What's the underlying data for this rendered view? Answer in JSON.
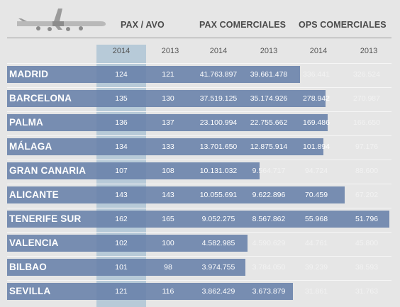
{
  "header": {
    "group_pax_avo": "PAX / AVO",
    "group_pax_comerciales": "PAX COMERCIALES",
    "group_ops_comerciales": "OPS COMERCIALES",
    "years": [
      "2014",
      "2013",
      "2014",
      "2013",
      "2014",
      "2013"
    ]
  },
  "plane_icon": "airplane-icon",
  "colors": {
    "bar": "#6680a9",
    "highlight_column": "#b7cad8",
    "background": "#e6e6e6",
    "header_text": "#4b4b4b"
  },
  "rows": [
    {
      "city": "MADRID",
      "pax_avo_2014": "124",
      "pax_avo_2013": "121",
      "pax_com_2014": "41.763.897",
      "pax_com_2013": "39.661.478",
      "ops_com_2014": "336.441",
      "ops_com_2013": "326.524"
    },
    {
      "city": "BARCELONA",
      "pax_avo_2014": "135",
      "pax_avo_2013": "130",
      "pax_com_2014": "37.519.125",
      "pax_com_2013": "35.174.926",
      "ops_com_2014": "278.942",
      "ops_com_2013": "270.987"
    },
    {
      "city": "PALMA",
      "pax_avo_2014": "136",
      "pax_avo_2013": "137",
      "pax_com_2014": "23.100.994",
      "pax_com_2013": "22.755.662",
      "ops_com_2014": "169.486",
      "ops_com_2013": "166.650"
    },
    {
      "city": "MÁLAGA",
      "pax_avo_2014": "134",
      "pax_avo_2013": "133",
      "pax_com_2014": "13.701.650",
      "pax_com_2013": "12.875.914",
      "ops_com_2014": "101.894",
      "ops_com_2013": "97.176"
    },
    {
      "city": "GRAN CANARIA",
      "pax_avo_2014": "107",
      "pax_avo_2013": "108",
      "pax_com_2014": "10.131.032",
      "pax_com_2013": "9.564.717",
      "ops_com_2014": "94.724",
      "ops_com_2013": "88.600"
    },
    {
      "city": "ALICANTE",
      "pax_avo_2014": "143",
      "pax_avo_2013": "143",
      "pax_com_2014": "10.055.691",
      "pax_com_2013": "9.622.896",
      "ops_com_2014": "70.459",
      "ops_com_2013": "67.202"
    },
    {
      "city": "TENERIFE SUR",
      "pax_avo_2014": "162",
      "pax_avo_2013": "165",
      "pax_com_2014": "9.052.275",
      "pax_com_2013": "8.567.862",
      "ops_com_2014": "55.968",
      "ops_com_2013": "51.796"
    },
    {
      "city": "VALENCIA",
      "pax_avo_2014": "102",
      "pax_avo_2013": "100",
      "pax_com_2014": "4.582.985",
      "pax_com_2013": "4.590.629",
      "ops_com_2014": "44.761",
      "ops_com_2013": "45.800"
    },
    {
      "city": "BILBAO",
      "pax_avo_2014": "101",
      "pax_avo_2013": "98",
      "pax_com_2014": "3.974.755",
      "pax_com_2013": "3.784.050",
      "ops_com_2014": "39.239",
      "ops_com_2013": "38.593"
    },
    {
      "city": "SEVILLA",
      "pax_avo_2014": "121",
      "pax_avo_2013": "116",
      "pax_com_2014": "3.862.429",
      "pax_com_2013": "3.673.879",
      "ops_com_2014": "31.861",
      "ops_com_2013": "31.763"
    }
  ],
  "chart_data": {
    "type": "bar",
    "orientation": "horizontal",
    "categories": [
      "MADRID",
      "BARCELONA",
      "PALMA",
      "MÁLAGA",
      "GRAN CANARIA",
      "ALICANTE",
      "TENERIFE SUR",
      "VALENCIA",
      "BILBAO",
      "SEVILLA"
    ],
    "values": [
      124,
      135,
      136,
      134,
      107,
      143,
      162,
      102,
      101,
      121
    ],
    "xlim": [
      0,
      162
    ],
    "table_columns": [
      "PAX / AVO 2014",
      "PAX / AVO 2013",
      "PAX COMERCIALES 2014",
      "PAX COMERCIALES 2013",
      "OPS COMERCIALES 2014",
      "OPS COMERCIALES 2013"
    ],
    "series": [
      {
        "name": "PAX / AVO 2014",
        "values": [
          124,
          135,
          136,
          134,
          107,
          143,
          162,
          102,
          101,
          121
        ]
      },
      {
        "name": "PAX / AVO 2013",
        "values": [
          121,
          130,
          137,
          133,
          108,
          143,
          165,
          100,
          98,
          116
        ]
      },
      {
        "name": "PAX COMERCIALES 2014",
        "values": [
          41763897,
          37519125,
          23100994,
          13701650,
          10131032,
          10055691,
          9052275,
          4582985,
          3974755,
          3862429
        ]
      },
      {
        "name": "PAX COMERCIALES 2013",
        "values": [
          39661478,
          35174926,
          22755662,
          12875914,
          9564717,
          9622896,
          8567862,
          4590629,
          3784050,
          3673879
        ]
      },
      {
        "name": "OPS COMERCIALES 2014",
        "values": [
          336441,
          278942,
          169486,
          101894,
          94724,
          70459,
          55968,
          44761,
          39239,
          31861
        ]
      },
      {
        "name": "OPS COMERCIALES 2013",
        "values": [
          326524,
          270987,
          166650,
          97176,
          88600,
          67202,
          51796,
          45800,
          38593,
          31763
        ]
      }
    ],
    "highlight_column": "PAX / AVO 2014",
    "grid": false,
    "legend": "none"
  }
}
